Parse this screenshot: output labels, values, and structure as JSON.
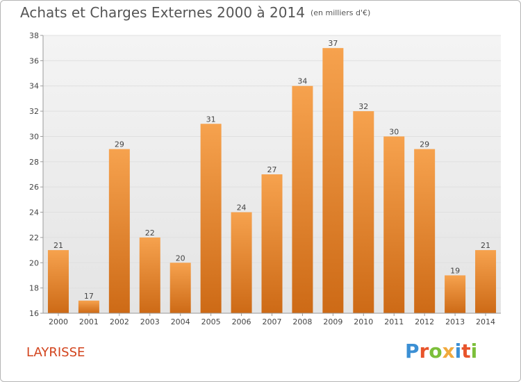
{
  "header": {
    "title": "Achats et Charges Externes 2000 à 2014",
    "unit": "(en milliers d'€)"
  },
  "footer": {
    "commune": "LAYRISSE",
    "logo_text": "Proxiti",
    "logo_colors": [
      "#3b8fd4",
      "#e8542b",
      "#7cbf3a",
      "#f1a93c",
      "#3b8fd4",
      "#e8542b",
      "#7cbf3a"
    ]
  },
  "colors": {
    "bar_top": "#f6a24e",
    "bar_bottom": "#cd6a16",
    "background": "#ffffff",
    "grid": "#e0e0e0",
    "axis": "#9a9a9a"
  },
  "chart_data": {
    "type": "bar",
    "title": "Achats et Charges Externes 2000 à 2014",
    "subtitle": "(en milliers d'€)",
    "xlabel": "",
    "ylabel": "",
    "categories": [
      "2000",
      "2001",
      "2002",
      "2003",
      "2004",
      "2005",
      "2006",
      "2007",
      "2008",
      "2009",
      "2010",
      "2011",
      "2012",
      "2013",
      "2014"
    ],
    "values": [
      21,
      17,
      29,
      22,
      20,
      31,
      24,
      27,
      34,
      37,
      32,
      30,
      29,
      19,
      21
    ],
    "ylim": [
      16,
      38
    ],
    "yticks": [
      16,
      18,
      20,
      22,
      24,
      26,
      28,
      30,
      32,
      34,
      36,
      38
    ],
    "grid": true,
    "data_labels": true
  }
}
